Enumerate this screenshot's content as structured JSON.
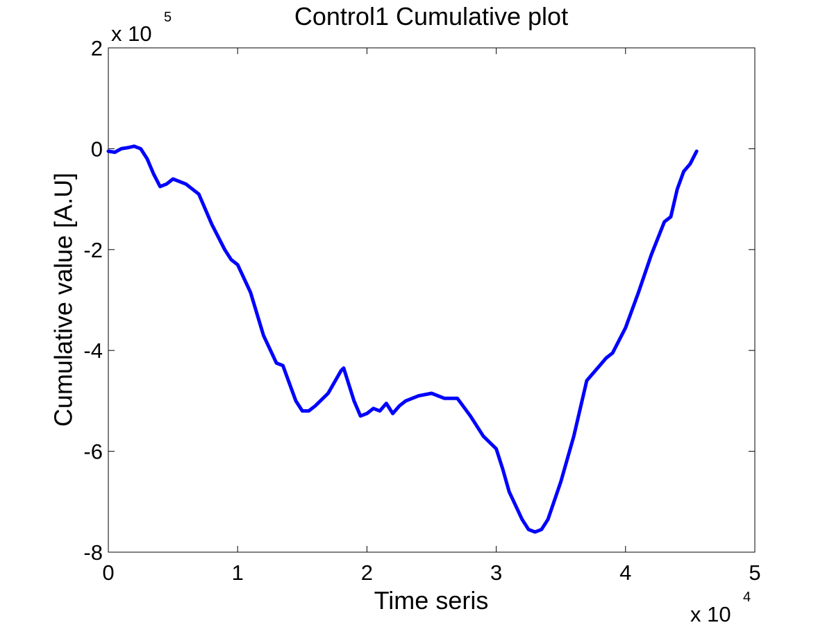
{
  "chart_data": {
    "type": "line",
    "title": "Control1 Cumulative plot",
    "xlabel": "Time seris",
    "ylabel": "Cumulative value [A.U]",
    "xlim": [
      0,
      5
    ],
    "ylim": [
      -8,
      2
    ],
    "x_ticks": [
      "0",
      "1",
      "2",
      "3",
      "4",
      "5"
    ],
    "y_ticks": [
      "-8",
      "-6",
      "-4",
      "-2",
      "0",
      "2"
    ],
    "x_multiplier": {
      "base": "x 10",
      "power": "4"
    },
    "y_multiplier": {
      "base": "x 10",
      "power": "5"
    },
    "grid": false,
    "legend": "none",
    "line_color": "#0000ff",
    "series": [
      {
        "x": [
          0,
          0.05,
          0.1,
          0.15,
          0.2,
          0.25,
          0.3,
          0.35,
          0.4,
          0.45,
          0.5,
          0.6,
          0.7,
          0.8,
          0.9,
          0.95,
          1.0,
          1.1,
          1.2,
          1.3,
          1.35,
          1.4,
          1.45,
          1.5,
          1.55,
          1.6,
          1.7,
          1.8,
          1.82,
          1.9,
          1.95,
          2.0,
          2.05,
          2.1,
          2.15,
          2.2,
          2.25,
          2.3,
          2.4,
          2.5,
          2.6,
          2.7,
          2.8,
          2.9,
          3.0,
          3.05,
          3.1,
          3.2,
          3.25,
          3.3,
          3.35,
          3.4,
          3.5,
          3.6,
          3.7,
          3.8,
          3.85,
          3.9,
          4.0,
          4.1,
          4.2,
          4.3,
          4.35,
          4.4,
          4.45,
          4.5,
          4.55
        ],
        "y": [
          -0.05,
          -0.07,
          0.0,
          0.02,
          0.05,
          0.0,
          -0.2,
          -0.5,
          -0.75,
          -0.7,
          -0.6,
          -0.7,
          -0.9,
          -1.5,
          -2.0,
          -2.2,
          -2.3,
          -2.85,
          -3.7,
          -4.25,
          -4.3,
          -4.65,
          -5.0,
          -5.2,
          -5.2,
          -5.1,
          -4.85,
          -4.4,
          -4.35,
          -5.0,
          -5.3,
          -5.25,
          -5.15,
          -5.2,
          -5.05,
          -5.25,
          -5.1,
          -5.0,
          -4.9,
          -4.85,
          -4.95,
          -4.95,
          -5.3,
          -5.7,
          -5.95,
          -6.35,
          -6.8,
          -7.35,
          -7.55,
          -7.6,
          -7.55,
          -7.35,
          -6.6,
          -5.7,
          -4.6,
          -4.3,
          -4.15,
          -4.05,
          -3.55,
          -2.85,
          -2.1,
          -1.45,
          -1.35,
          -0.8,
          -0.45,
          -0.3,
          -0.05
        ]
      }
    ]
  }
}
